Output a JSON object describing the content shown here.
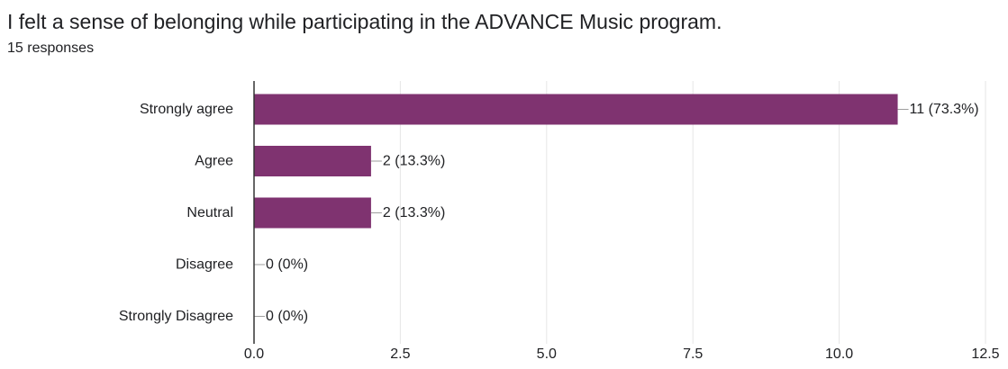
{
  "header": {
    "title": "I felt a sense of belonging while participating in the ADVANCE Music program.",
    "subtitle": "15 responses"
  },
  "colors": {
    "bar": "#7f3370",
    "grid": "#e6e6e6",
    "axis": "#333333",
    "leader": "#9e9e9e"
  },
  "chart_data": {
    "type": "bar",
    "orientation": "horizontal",
    "categories": [
      "Strongly agree",
      "Agree",
      "Neutral",
      "Disagree",
      "Strongly Disagree"
    ],
    "values": [
      11,
      2,
      2,
      0,
      0
    ],
    "data_labels": [
      "11 (73.3%)",
      "2 (13.3%)",
      "2 (13.3%)",
      "0 (0%)",
      "0 (0%)"
    ],
    "xlim": [
      0,
      12.5
    ],
    "xticks": [
      0,
      2.5,
      5,
      7.5,
      10,
      12.5
    ],
    "xtick_labels": [
      "0.0",
      "2.5",
      "5.0",
      "7.5",
      "10.0",
      "12.5"
    ],
    "grid": true,
    "legend": "none"
  }
}
